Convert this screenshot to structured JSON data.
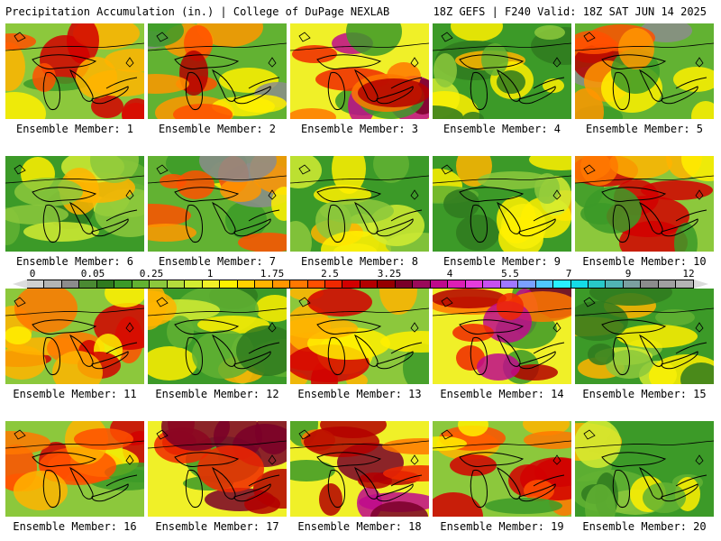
{
  "header": {
    "title": "Precipitation Accumulation (in.) | College of DuPage NEXLAB",
    "run": "18Z GEFS | F240 Valid: 18Z SAT JUN 14 2025"
  },
  "colorbar": {
    "ticks": [
      "0",
      "0.05",
      "0.25",
      "1",
      "1.75",
      "2.5",
      "3.25",
      "4",
      "5.5",
      "7",
      "9",
      "12"
    ],
    "colors": [
      "#d0d0d0",
      "#b4b4b4",
      "#8c8c8c",
      "#4a8a32",
      "#2f7a1e",
      "#3c9a28",
      "#62b232",
      "#8cc83c",
      "#b4dc3c",
      "#d2ec32",
      "#f0f028",
      "#fff000",
      "#ffd200",
      "#ffb400",
      "#ff9600",
      "#ff7800",
      "#ff5000",
      "#f02800",
      "#d20000",
      "#b40000",
      "#960000",
      "#7a0028",
      "#9a0a5a",
      "#be0a8c",
      "#dc1eb4",
      "#e63cdc",
      "#c850f0",
      "#a078ff",
      "#7aa0ff",
      "#50c8ff",
      "#28f0ff",
      "#14dce6",
      "#28c8c8",
      "#50b4b4",
      "#7aa0a0",
      "#8c8c8c",
      "#a0a0a0",
      "#b4b4b4"
    ]
  },
  "panels": [
    {
      "label": "Ensemble Member: 1",
      "theme": "wet"
    },
    {
      "label": "Ensemble Member: 2",
      "theme": "mixed"
    },
    {
      "label": "Ensemble Member: 3",
      "theme": "heavy"
    },
    {
      "label": "Ensemble Member: 4",
      "theme": "dry"
    },
    {
      "label": "Ensemble Member: 5",
      "theme": "mixed"
    },
    {
      "label": "Ensemble Member: 6",
      "theme": "dry"
    },
    {
      "label": "Ensemble Member: 7",
      "theme": "mixed"
    },
    {
      "label": "Ensemble Member: 8",
      "theme": "dry"
    },
    {
      "label": "Ensemble Member: 9",
      "theme": "dry"
    },
    {
      "label": "Ensemble Member: 10",
      "theme": "wet"
    },
    {
      "label": "Ensemble Member: 11",
      "theme": "wet"
    },
    {
      "label": "Ensemble Member: 12",
      "theme": "dry"
    },
    {
      "label": "Ensemble Member: 13",
      "theme": "wet"
    },
    {
      "label": "Ensemble Member: 14",
      "theme": "heavy"
    },
    {
      "label": "Ensemble Member: 15",
      "theme": "dry"
    },
    {
      "label": "Ensemble Member: 16",
      "theme": "wet"
    },
    {
      "label": "Ensemble Member: 17",
      "theme": "heavy"
    },
    {
      "label": "Ensemble Member: 18",
      "theme": "heavy"
    },
    {
      "label": "Ensemble Member: 19",
      "theme": "wet"
    },
    {
      "label": "Ensemble Member: 20",
      "theme": "dry"
    }
  ]
}
